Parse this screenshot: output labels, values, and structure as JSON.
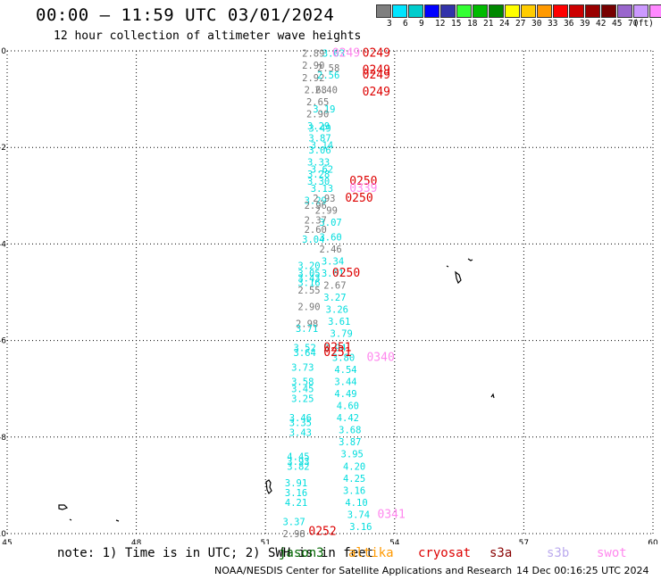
{
  "header": {
    "title": "00:00 – 11:59 UTC 03/01/2024",
    "subtitle": "12 hour collection of altimeter wave heights"
  },
  "colorbar": {
    "unit": "(ft)",
    "colors": [
      "#7f7f7f",
      "#00e5ff",
      "#00cccc",
      "#0000ff",
      "#3333aa",
      "#33ff33",
      "#00bb00",
      "#008800",
      "#ffff00",
      "#ffcc00",
      "#ff9900",
      "#ff0000",
      "#cc0000",
      "#990000",
      "#770000",
      "#9966cc",
      "#cc99ff",
      "#ff88ff",
      "#000000"
    ],
    "labels": [
      "3",
      "6",
      "9",
      "12",
      "15",
      "18",
      "21",
      "24",
      "27",
      "30",
      "33",
      "36",
      "39",
      "42",
      "45",
      "70"
    ]
  },
  "map": {
    "lon_ticks": [
      "45",
      "48",
      "51",
      "54",
      "57",
      "60"
    ],
    "lat_ticks": [
      "0",
      "-2",
      "-4",
      "-6",
      "-8",
      "-10"
    ],
    "lon_range": [
      45,
      60
    ],
    "lat_range": [
      0,
      -10
    ],
    "observations": [
      {
        "t": "2.89",
        "lon": 51.85,
        "lat": -0.05,
        "c": "#777777"
      },
      {
        "t": "3.03",
        "lon": 52.32,
        "lat": -0.05,
        "c": "#00dddd"
      },
      {
        "t": "2.90",
        "lon": 51.85,
        "lat": -0.3,
        "c": "#777777"
      },
      {
        "t": "2.58",
        "lon": 52.2,
        "lat": -0.35,
        "c": "#777777"
      },
      {
        "t": "2.92",
        "lon": 51.85,
        "lat": -0.55,
        "c": "#777777"
      },
      {
        "t": "2.56",
        "lon": 52.2,
        "lat": -0.5,
        "c": "#00dddd"
      },
      {
        "t": "2.68",
        "lon": 51.9,
        "lat": -0.8,
        "c": "#777777"
      },
      {
        "t": "2.40",
        "lon": 52.15,
        "lat": -0.8,
        "c": "#777777"
      },
      {
        "t": "2.65",
        "lon": 51.95,
        "lat": -1.05,
        "c": "#777777"
      },
      {
        "t": "3.19",
        "lon": 52.1,
        "lat": -1.2,
        "c": "#00dddd"
      },
      {
        "t": "2.90",
        "lon": 51.95,
        "lat": -1.3,
        "c": "#777777"
      },
      {
        "t": "3.29",
        "lon": 51.97,
        "lat": -1.55,
        "c": "#00dddd"
      },
      {
        "t": "3.49",
        "lon": 52.0,
        "lat": -1.6,
        "c": "#00dddd"
      },
      {
        "t": "3.87",
        "lon": 52.0,
        "lat": -1.8,
        "c": "#00dddd"
      },
      {
        "t": "3.14",
        "lon": 52.05,
        "lat": -1.95,
        "c": "#00dddd"
      },
      {
        "t": "3.06",
        "lon": 52.0,
        "lat": -2.05,
        "c": "#00dddd"
      },
      {
        "t": "3.33",
        "lon": 51.97,
        "lat": -2.3,
        "c": "#00dddd"
      },
      {
        "t": "3.28",
        "lon": 51.97,
        "lat": -2.55,
        "c": "#00dddd"
      },
      {
        "t": "3.62",
        "lon": 52.05,
        "lat": -2.45,
        "c": "#00dddd"
      },
      {
        "t": "3.30",
        "lon": 51.97,
        "lat": -2.7,
        "c": "#00dddd"
      },
      {
        "t": "3.13",
        "lon": 52.05,
        "lat": -2.85,
        "c": "#00dddd"
      },
      {
        "t": "3.29",
        "lon": 51.9,
        "lat": -3.1,
        "c": "#00dddd"
      },
      {
        "t": "2.93",
        "lon": 52.1,
        "lat": -3.05,
        "c": "#777777"
      },
      {
        "t": "2.96",
        "lon": 51.9,
        "lat": -3.2,
        "c": "#777777"
      },
      {
        "t": "2.99",
        "lon": 52.15,
        "lat": -3.3,
        "c": "#777777"
      },
      {
        "t": "2.37",
        "lon": 51.9,
        "lat": -3.5,
        "c": "#777777"
      },
      {
        "t": "3.07",
        "lon": 52.25,
        "lat": -3.55,
        "c": "#00dddd"
      },
      {
        "t": "2.60",
        "lon": 51.9,
        "lat": -3.7,
        "c": "#777777"
      },
      {
        "t": "3.60",
        "lon": 52.25,
        "lat": -3.85,
        "c": "#00dddd"
      },
      {
        "t": "3.04",
        "lon": 51.85,
        "lat": -3.9,
        "c": "#00dddd"
      },
      {
        "t": "2.46",
        "lon": 52.25,
        "lat": -4.1,
        "c": "#777777"
      },
      {
        "t": "3.34",
        "lon": 52.3,
        "lat": -4.35,
        "c": "#00dddd"
      },
      {
        "t": "3.20",
        "lon": 51.75,
        "lat": -4.45,
        "c": "#00dddd"
      },
      {
        "t": "3.05",
        "lon": 51.75,
        "lat": -4.6,
        "c": "#00dddd"
      },
      {
        "t": "3.61",
        "lon": 52.3,
        "lat": -4.6,
        "c": "#00dddd"
      },
      {
        "t": "3.43",
        "lon": 51.75,
        "lat": -4.7,
        "c": "#00dddd"
      },
      {
        "t": "3.16",
        "lon": 51.75,
        "lat": -4.8,
        "c": "#00dddd"
      },
      {
        "t": "2.67",
        "lon": 52.35,
        "lat": -4.85,
        "c": "#777777"
      },
      {
        "t": "2.55",
        "lon": 51.75,
        "lat": -4.95,
        "c": "#777777"
      },
      {
        "t": "3.27",
        "lon": 52.35,
        "lat": -5.1,
        "c": "#00dddd"
      },
      {
        "t": "2.90",
        "lon": 51.75,
        "lat": -5.3,
        "c": "#777777"
      },
      {
        "t": "3.26",
        "lon": 52.4,
        "lat": -5.35,
        "c": "#00dddd"
      },
      {
        "t": "3.61",
        "lon": 52.45,
        "lat": -5.6,
        "c": "#00dddd"
      },
      {
        "t": "2.98",
        "lon": 51.7,
        "lat": -5.65,
        "c": "#777777"
      },
      {
        "t": "3.71",
        "lon": 51.7,
        "lat": -5.75,
        "c": "#00dddd"
      },
      {
        "t": "3.79",
        "lon": 52.5,
        "lat": -5.85,
        "c": "#00dddd"
      },
      {
        "t": "3.52",
        "lon": 51.65,
        "lat": -6.15,
        "c": "#00dddd"
      },
      {
        "t": "3.64",
        "lon": 51.65,
        "lat": -6.25,
        "c": "#00dddd"
      },
      {
        "t": "3.94",
        "lon": 52.35,
        "lat": -6.15,
        "c": "#00dddd"
      },
      {
        "t": "3.80",
        "lon": 52.55,
        "lat": -6.35,
        "c": "#00dddd"
      },
      {
        "t": "3.73",
        "lon": 51.6,
        "lat": -6.55,
        "c": "#00dddd"
      },
      {
        "t": "4.54",
        "lon": 52.6,
        "lat": -6.6,
        "c": "#00dddd"
      },
      {
        "t": "3.58",
        "lon": 51.6,
        "lat": -6.85,
        "c": "#00dddd"
      },
      {
        "t": "3.44",
        "lon": 52.6,
        "lat": -6.85,
        "c": "#00dddd"
      },
      {
        "t": "3.45",
        "lon": 51.6,
        "lat": -7.0,
        "c": "#00dddd"
      },
      {
        "t": "4.49",
        "lon": 52.6,
        "lat": -7.1,
        "c": "#00dddd"
      },
      {
        "t": "3.25",
        "lon": 51.6,
        "lat": -7.2,
        "c": "#00dddd"
      },
      {
        "t": "4.60",
        "lon": 52.65,
        "lat": -7.35,
        "c": "#00dddd"
      },
      {
        "t": "3.46",
        "lon": 51.55,
        "lat": -7.6,
        "c": "#00dddd"
      },
      {
        "t": "3.35",
        "lon": 51.55,
        "lat": -7.7,
        "c": "#00dddd"
      },
      {
        "t": "4.42",
        "lon": 52.65,
        "lat": -7.6,
        "c": "#00dddd"
      },
      {
        "t": "3.43",
        "lon": 51.55,
        "lat": -7.9,
        "c": "#00dddd"
      },
      {
        "t": "3.68",
        "lon": 52.7,
        "lat": -7.85,
        "c": "#00dddd"
      },
      {
        "t": "3.87",
        "lon": 52.7,
        "lat": -8.1,
        "c": "#00dddd"
      },
      {
        "t": "3.95",
        "lon": 52.75,
        "lat": -8.35,
        "c": "#00dddd"
      },
      {
        "t": "4.45",
        "lon": 51.5,
        "lat": -8.4,
        "c": "#00dddd"
      },
      {
        "t": "3.93",
        "lon": 51.5,
        "lat": -8.5,
        "c": "#00dddd"
      },
      {
        "t": "3.82",
        "lon": 51.5,
        "lat": -8.6,
        "c": "#00dddd"
      },
      {
        "t": "4.20",
        "lon": 52.8,
        "lat": -8.6,
        "c": "#00dddd"
      },
      {
        "t": "4.25",
        "lon": 52.8,
        "lat": -8.85,
        "c": "#00dddd"
      },
      {
        "t": "3.91",
        "lon": 51.45,
        "lat": -8.95,
        "c": "#00dddd"
      },
      {
        "t": "3.16",
        "lon": 52.8,
        "lat": -9.1,
        "c": "#00dddd"
      },
      {
        "t": "3.16",
        "lon": 51.45,
        "lat": -9.15,
        "c": "#00dddd"
      },
      {
        "t": "4.21",
        "lon": 51.45,
        "lat": -9.35,
        "c": "#00dddd"
      },
      {
        "t": "4.10",
        "lon": 52.85,
        "lat": -9.35,
        "c": "#00dddd"
      },
      {
        "t": "3.74",
        "lon": 52.9,
        "lat": -9.6,
        "c": "#00dddd"
      },
      {
        "t": "3.37",
        "lon": 51.4,
        "lat": -9.75,
        "c": "#00dddd"
      },
      {
        "t": "3.16",
        "lon": 52.95,
        "lat": -9.85,
        "c": "#00dddd"
      },
      {
        "t": "2.98",
        "lon": 51.4,
        "lat": -10.0,
        "c": "#777777"
      }
    ],
    "passes": [
      {
        "t": "0249",
        "lon": 53.25,
        "lat": -0.05,
        "c": "#dd0000"
      },
      {
        "t": "0249",
        "lon": 52.55,
        "lat": -0.05,
        "c": "#ff88ee"
      },
      {
        "t": "0249",
        "lon": 53.25,
        "lat": -0.4,
        "c": "#dd0000"
      },
      {
        "t": "0249",
        "lon": 53.25,
        "lat": -0.5,
        "c": "#dd0000"
      },
      {
        "t": "0249",
        "lon": 53.25,
        "lat": -0.85,
        "c": "#dd0000"
      },
      {
        "t": "0250",
        "lon": 52.95,
        "lat": -2.7,
        "c": "#dd0000"
      },
      {
        "t": "0339",
        "lon": 52.95,
        "lat": -2.85,
        "c": "#ff88ee"
      },
      {
        "t": "0250",
        "lon": 52.85,
        "lat": -3.05,
        "c": "#dd0000"
      },
      {
        "t": "0250",
        "lon": 52.55,
        "lat": -4.6,
        "c": "#dd0000"
      },
      {
        "t": "0251",
        "lon": 52.35,
        "lat": -6.15,
        "c": "#dd0000"
      },
      {
        "t": "0251",
        "lon": 52.35,
        "lat": -6.25,
        "c": "#dd0000"
      },
      {
        "t": "0340",
        "lon": 53.35,
        "lat": -6.35,
        "c": "#ff88ee"
      },
      {
        "t": "0341",
        "lon": 53.6,
        "lat": -9.6,
        "c": "#ff88ee"
      },
      {
        "t": "0252",
        "lon": 52.0,
        "lat": -9.95,
        "c": "#dd0000"
      }
    ]
  },
  "footer": {
    "note": "note: 1) Time is in UTC; 2) SWH is in feet",
    "legend": [
      {
        "label": "jason3",
        "color": "#006600"
      },
      {
        "label": "altika",
        "color": "#ff9900"
      },
      {
        "label": "cryosat",
        "color": "#dd0000"
      },
      {
        "label": "s3a",
        "color": "#880000"
      },
      {
        "label": "s3b",
        "color": "#bbaaee"
      },
      {
        "label": "swot",
        "color": "#ff88ee"
      }
    ],
    "credit": "NOAA/NESDIS Center for Satellite Applications and Research",
    "timestamp": "14 Dec 00:16:25 UTC 2024"
  }
}
